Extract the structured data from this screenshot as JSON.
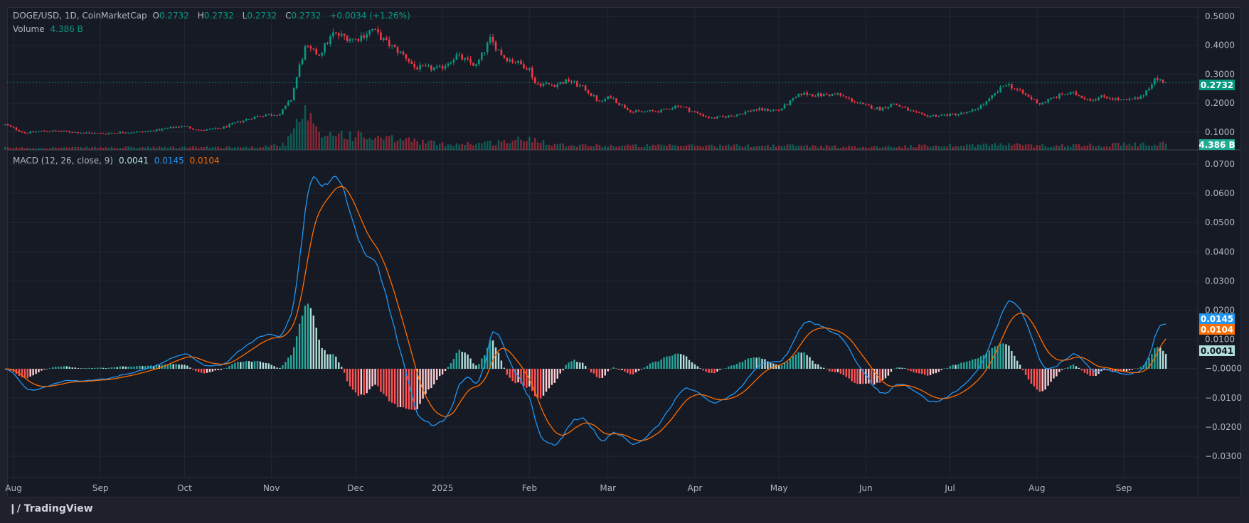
{
  "header": {
    "symbol": "DOGE/USD, 1D, CoinMarketCap",
    "o_label": "O",
    "o": "0.2732",
    "h_label": "H",
    "h": "0.2732",
    "l_label": "L",
    "l": "0.2732",
    "c_label": "C",
    "c": "0.2732",
    "change": "+0.0034 (+1.26%)",
    "volume_label": "Volume",
    "volume": "4.386 B"
  },
  "macd_legend": {
    "title": "MACD (12, 26, close, 9)",
    "histogram": "0.0041",
    "macd": "0.0145",
    "signal": "0.0104"
  },
  "colors": {
    "up": "#089981",
    "down": "#f23645",
    "macd": "#2196f3",
    "signal": "#ff6d00",
    "hist_up_grow": "#26a69a",
    "hist_up_fall": "#b2dfdb",
    "hist_dn_grow": "#ff5252",
    "hist_dn_fall": "#ffcdd2"
  },
  "chart_data": [
    {
      "type": "candlestick",
      "title": "DOGE/USD, 1D, CoinMarketCap",
      "ylim": [
        0.06,
        0.53
      ],
      "y_ticks": [
        "0.5000",
        "0.4000",
        "0.3000",
        "0.2000",
        "0.1000"
      ],
      "last_price_label": "0.2732",
      "close_anchors": [
        [
          "2024-07-29",
          0.128
        ],
        [
          "2024-08-05",
          0.1
        ],
        [
          "2024-08-12",
          0.107
        ],
        [
          "2024-08-19",
          0.105
        ],
        [
          "2024-08-26",
          0.1
        ],
        [
          "2024-09-02",
          0.098
        ],
        [
          "2024-09-09",
          0.102
        ],
        [
          "2024-09-16",
          0.103
        ],
        [
          "2024-09-23",
          0.112
        ],
        [
          "2024-09-30",
          0.124
        ],
        [
          "2024-10-07",
          0.108
        ],
        [
          "2024-10-14",
          0.116
        ],
        [
          "2024-10-21",
          0.14
        ],
        [
          "2024-10-28",
          0.16
        ],
        [
          "2024-11-04",
          0.165
        ],
        [
          "2024-11-08",
          0.215
        ],
        [
          "2024-11-11",
          0.33
        ],
        [
          "2024-11-13",
          0.39
        ],
        [
          "2024-11-18",
          0.37
        ],
        [
          "2024-11-23",
          0.44
        ],
        [
          "2024-12-01",
          0.42
        ],
        [
          "2024-12-07",
          0.455
        ],
        [
          "2024-12-12",
          0.41
        ],
        [
          "2024-12-19",
          0.36
        ],
        [
          "2024-12-22",
          0.325
        ],
        [
          "2024-12-31",
          0.32
        ],
        [
          "2025-01-06",
          0.365
        ],
        [
          "2025-01-13",
          0.33
        ],
        [
          "2025-01-18",
          0.42
        ],
        [
          "2025-01-23",
          0.36
        ],
        [
          "2025-01-28",
          0.34
        ],
        [
          "2025-02-01",
          0.32
        ],
        [
          "2025-02-03",
          0.27
        ],
        [
          "2025-02-10",
          0.265
        ],
        [
          "2025-02-15",
          0.28
        ],
        [
          "2025-02-21",
          0.25
        ],
        [
          "2025-02-26",
          0.205
        ],
        [
          "2025-03-02",
          0.225
        ],
        [
          "2025-03-05",
          0.2
        ],
        [
          "2025-03-10",
          0.172
        ],
        [
          "2025-03-20",
          0.175
        ],
        [
          "2025-03-26",
          0.195
        ],
        [
          "2025-04-01",
          0.17
        ],
        [
          "2025-04-07",
          0.15
        ],
        [
          "2025-04-15",
          0.16
        ],
        [
          "2025-04-22",
          0.18
        ],
        [
          "2025-05-01",
          0.178
        ],
        [
          "2025-05-09",
          0.235
        ],
        [
          "2025-05-15",
          0.23
        ],
        [
          "2025-05-22",
          0.232
        ],
        [
          "2025-05-31",
          0.195
        ],
        [
          "2025-06-06",
          0.182
        ],
        [
          "2025-06-11",
          0.2
        ],
        [
          "2025-06-18",
          0.17
        ],
        [
          "2025-06-22",
          0.158
        ],
        [
          "2025-07-01",
          0.162
        ],
        [
          "2025-07-08",
          0.17
        ],
        [
          "2025-07-14",
          0.205
        ],
        [
          "2025-07-21",
          0.27
        ],
        [
          "2025-07-27",
          0.235
        ],
        [
          "2025-08-02",
          0.2
        ],
        [
          "2025-08-10",
          0.232
        ],
        [
          "2025-08-14",
          0.235
        ],
        [
          "2025-08-20",
          0.215
        ],
        [
          "2025-08-25",
          0.225
        ],
        [
          "2025-09-01",
          0.21
        ],
        [
          "2025-09-07",
          0.22
        ],
        [
          "2025-09-12",
          0.285
        ],
        [
          "2025-09-16",
          0.2732
        ]
      ],
      "volume_unit": "B",
      "volume_last_label": "4.386 B",
      "volume_anchors": [
        [
          "2024-07-29",
          1.5
        ],
        [
          "2024-10-25",
          2
        ],
        [
          "2024-11-06",
          4
        ],
        [
          "2024-11-11",
          20
        ],
        [
          "2024-11-13",
          25
        ],
        [
          "2024-11-18",
          10
        ],
        [
          "2024-11-24",
          12
        ],
        [
          "2024-12-08",
          8
        ],
        [
          "2024-12-20",
          7
        ],
        [
          "2025-01-01",
          4
        ],
        [
          "2025-01-18",
          5
        ],
        [
          "2025-02-03",
          8
        ],
        [
          "2025-02-10",
          4
        ],
        [
          "2025-03-01",
          3
        ],
        [
          "2025-04-07",
          3
        ],
        [
          "2025-05-09",
          3
        ],
        [
          "2025-06-01",
          2
        ],
        [
          "2025-07-20",
          4
        ],
        [
          "2025-08-01",
          3
        ],
        [
          "2025-09-12",
          4
        ],
        [
          "2025-09-16",
          4.386
        ]
      ]
    },
    {
      "type": "line+bar",
      "title": "MACD (12, 26, close, 9)",
      "ylim": [
        -0.033,
        0.074
      ],
      "y_ticks": [
        "0.0700",
        "0.0600",
        "0.0500",
        "0.0400",
        "0.0300",
        "0.0200",
        "0.0100",
        "−0.0000",
        "−0.0100",
        "−0.0200",
        "−0.0300"
      ],
      "series": [
        {
          "name": "MACD",
          "last": "0.0145"
        },
        {
          "name": "Signal",
          "last": "0.0104"
        },
        {
          "name": "Histogram",
          "last": "0.0041"
        }
      ]
    }
  ],
  "x_ticks": [
    {
      "label": "Aug",
      "date": "2024-08-01"
    },
    {
      "label": "Sep",
      "date": "2024-09-01"
    },
    {
      "label": "Oct",
      "date": "2024-10-01"
    },
    {
      "label": "Nov",
      "date": "2024-11-01"
    },
    {
      "label": "Dec",
      "date": "2024-12-01"
    },
    {
      "label": "2025",
      "date": "2025-01-01"
    },
    {
      "label": "Feb",
      "date": "2025-02-01"
    },
    {
      "label": "Mar",
      "date": "2025-03-01"
    },
    {
      "label": "Apr",
      "date": "2025-04-01"
    },
    {
      "label": "May",
      "date": "2025-05-01"
    },
    {
      "label": "Jun",
      "date": "2025-06-01"
    },
    {
      "label": "Jul",
      "date": "2025-07-01"
    },
    {
      "label": "Aug",
      "date": "2025-08-01"
    },
    {
      "label": "Sep",
      "date": "2025-09-01"
    }
  ],
  "footer": {
    "brand": "TradingView"
  }
}
